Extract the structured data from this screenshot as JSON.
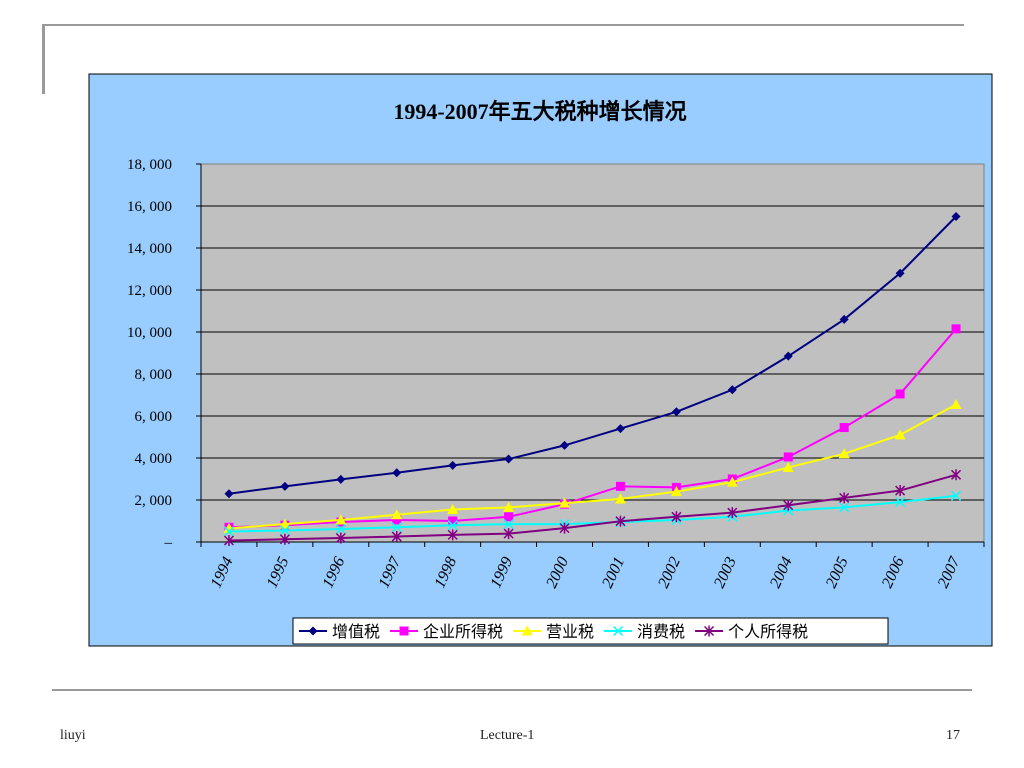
{
  "footer": {
    "left": "liuyi",
    "center": "Lecture-1",
    "right": "17"
  },
  "chart_data": {
    "type": "line",
    "title": "1994-2007年五大税种增长情况",
    "xlabel": "",
    "ylabel": "",
    "categories": [
      "1994",
      "1995",
      "1996",
      "1997",
      "1998",
      "1999",
      "2000",
      "2001",
      "2002",
      "2003",
      "2004",
      "2005",
      "2006",
      "2007"
    ],
    "ylim": [
      0,
      18000
    ],
    "yticks": [
      0,
      2000,
      4000,
      6000,
      8000,
      10000,
      12000,
      14000,
      16000,
      18000
    ],
    "ytick_labels": [
      "–",
      "2, 000",
      "4, 000",
      "6, 000",
      "8, 000",
      "10, 000",
      "12, 000",
      "14, 000",
      "16, 000",
      "18, 000"
    ],
    "grid": true,
    "legend_position": "bottom",
    "colors": {
      "outer_bg": "#99ccff",
      "plot_bg": "#c0c0c0"
    },
    "series": [
      {
        "name": "增值税",
        "color": "#000080",
        "marker": "diamond",
        "values": [
          2300,
          2650,
          2980,
          3300,
          3650,
          3950,
          4600,
          5400,
          6200,
          7250,
          8850,
          10600,
          12800,
          15500
        ]
      },
      {
        "name": "企业所得税",
        "color": "#ff00ff",
        "marker": "square",
        "values": [
          700,
          800,
          950,
          1050,
          1000,
          1200,
          1800,
          2650,
          2600,
          3000,
          4050,
          5450,
          7050,
          10150
        ]
      },
      {
        "name": "营业税",
        "color": "#ffff00",
        "marker": "triangle",
        "values": [
          650,
          850,
          1050,
          1300,
          1550,
          1650,
          1850,
          2050,
          2400,
          2850,
          3550,
          4200,
          5100,
          6550
        ]
      },
      {
        "name": "消费税",
        "color": "#00ffff",
        "marker": "x",
        "values": [
          500,
          550,
          620,
          700,
          800,
          850,
          850,
          950,
          1050,
          1200,
          1500,
          1650,
          1900,
          2200
        ]
      },
      {
        "name": "个人所得税",
        "color": "#800080",
        "marker": "star",
        "values": [
          70,
          130,
          190,
          260,
          340,
          400,
          660,
          990,
          1200,
          1400,
          1750,
          2100,
          2450,
          3200
        ]
      }
    ]
  }
}
